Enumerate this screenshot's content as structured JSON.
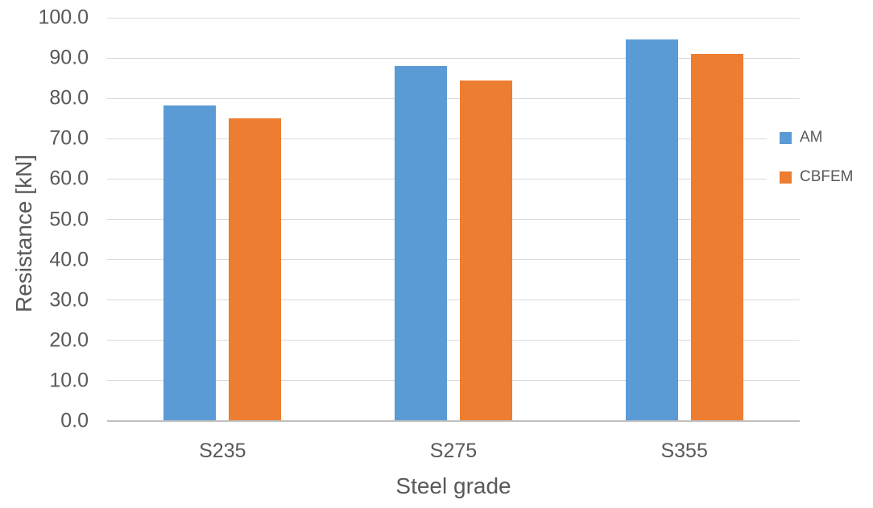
{
  "chart_data": {
    "type": "bar",
    "title": "",
    "categories": [
      "S235",
      "S275",
      "S355"
    ],
    "series": [
      {
        "name": "AM",
        "color": "#5B9BD5",
        "values": [
          78.2,
          88.0,
          94.6
        ]
      },
      {
        "name": "CBFEM",
        "color": "#ED7D31",
        "values": [
          75.0,
          84.4,
          91.0
        ]
      }
    ],
    "xlabel": "Steel grade",
    "ylabel": "Resistance [kN]",
    "ylim": [
      0,
      100
    ],
    "ytick_step": 10,
    "yticks": [
      "0.0",
      "10.0",
      "20.0",
      "30.0",
      "40.0",
      "50.0",
      "60.0",
      "70.0",
      "80.0",
      "90.0",
      "100.0"
    ],
    "grid": true,
    "legend_position": "right-overlap",
    "colors": {
      "text": "#595959",
      "gridline": "#D9D9D9",
      "axis_line": "#BFBFBF",
      "background": "#FFFFFF"
    }
  }
}
